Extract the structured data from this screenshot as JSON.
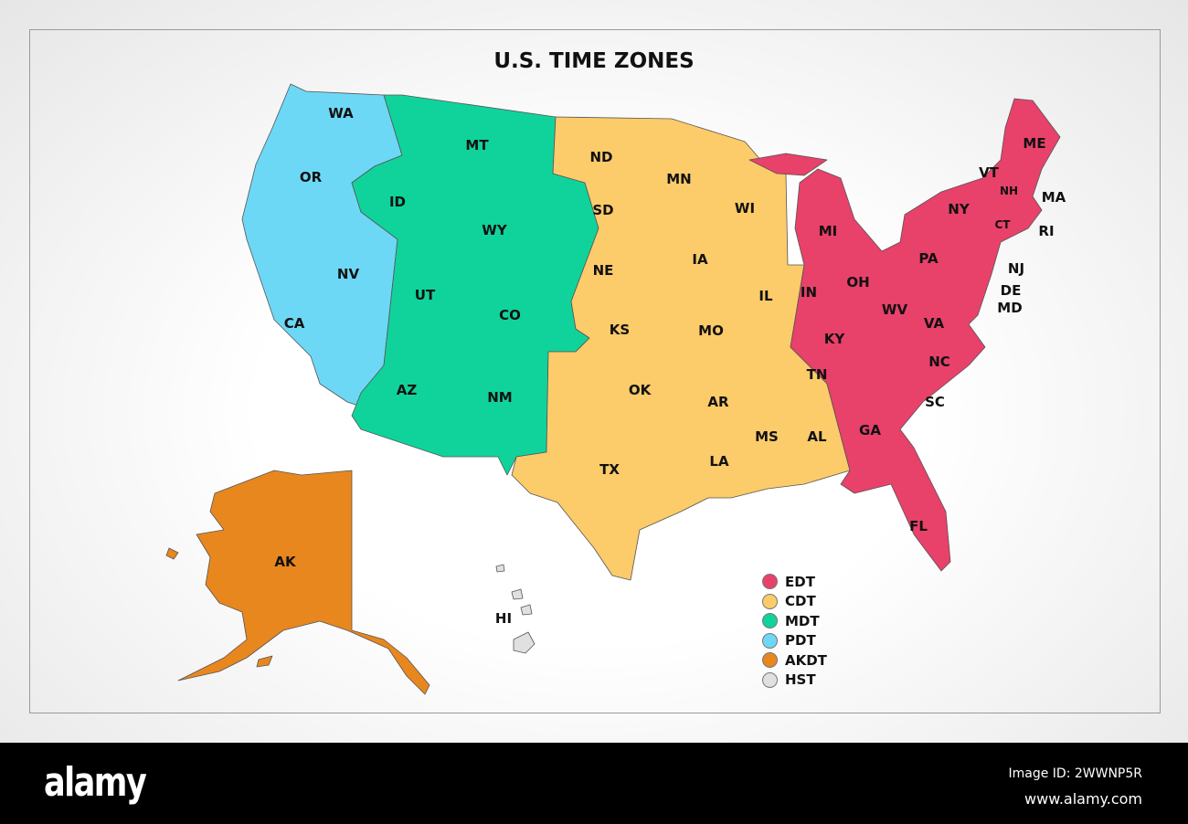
{
  "title": "U.S. TIME ZONES",
  "colors": {
    "EDT": "#e8416a",
    "CDT": "#fccb6a",
    "MDT": "#10d39c",
    "PDT": "#6dd8f5",
    "AKDT": "#e8871e",
    "HST": "#e0e0e0"
  },
  "states": [
    "WA",
    "OR",
    "CA",
    "NV",
    "ID",
    "MT",
    "WY",
    "UT",
    "CO",
    "AZ",
    "NM",
    "ND",
    "SD",
    "NE",
    "KS",
    "OK",
    "TX",
    "MN",
    "IA",
    "MO",
    "AR",
    "LA",
    "WI",
    "IL",
    "MS",
    "AL",
    "TN",
    "KY",
    "IN",
    "MI",
    "OH",
    "WV",
    "VA",
    "NC",
    "SC",
    "GA",
    "FL",
    "PA",
    "NY",
    "VT",
    "NH",
    "ME",
    "MA",
    "CT",
    "RI",
    "NJ",
    "DE",
    "MD",
    "AK",
    "HI"
  ],
  "legend": [
    {
      "label": "EDT",
      "zone": "EDT"
    },
    {
      "label": "CDT",
      "zone": "CDT"
    },
    {
      "label": "MDT",
      "zone": "MDT"
    },
    {
      "label": "PDT",
      "zone": "PDT"
    },
    {
      "label": "AKDT",
      "zone": "AKDT"
    },
    {
      "label": "HST",
      "zone": "HST"
    }
  ],
  "footer": {
    "logo": "alamy",
    "image_id": "Image ID: 2WWNP5R",
    "url": "www.alamy.com"
  }
}
